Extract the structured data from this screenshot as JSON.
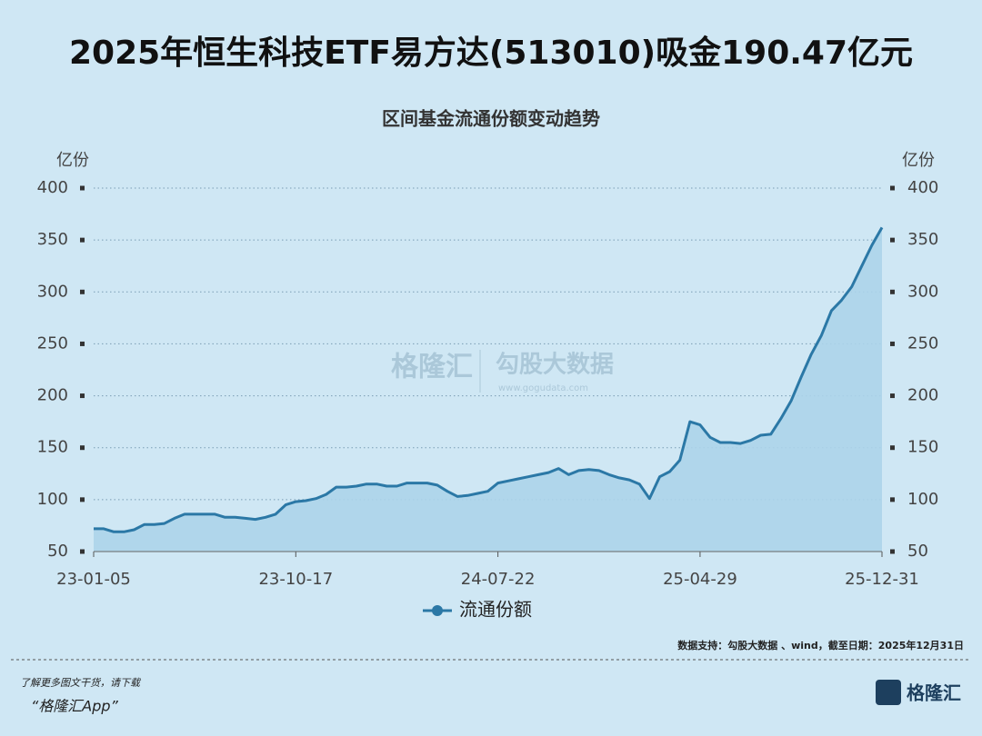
{
  "chart_data": {
    "type": "area",
    "title": "2025年恒生科技ETF易方达(513010)吸金190.47亿元",
    "subtitle": "区间基金流通份额变动趋势",
    "y_label": "亿份",
    "y2_label": "亿份",
    "categories": [
      "23-01-05",
      null,
      null,
      null,
      null,
      null,
      null,
      null,
      null,
      null,
      null,
      null,
      null,
      null,
      null,
      null,
      null,
      null,
      null,
      null,
      "23-10-17",
      null,
      null,
      null,
      null,
      null,
      null,
      null,
      null,
      null,
      null,
      null,
      null,
      null,
      null,
      null,
      null,
      null,
      null,
      null,
      "24-07-22",
      null,
      null,
      null,
      null,
      null,
      null,
      null,
      null,
      null,
      null,
      null,
      null,
      null,
      null,
      null,
      null,
      null,
      null,
      null,
      "25-04-29",
      null,
      null,
      null,
      null,
      null,
      null,
      null,
      null,
      null,
      null,
      null,
      null,
      null,
      null,
      null,
      null,
      null,
      "25-12-31"
    ],
    "series": [
      {
        "name": "流通份额",
        "color": "#2b78a6",
        "fill": "#acd4ea",
        "values": [
          72,
          72,
          69,
          69,
          71,
          76,
          76,
          77,
          82,
          86,
          86,
          86,
          86,
          83,
          83,
          82,
          81,
          83,
          86,
          95,
          98,
          99,
          101,
          105,
          112,
          112,
          113,
          115,
          115,
          113,
          113,
          116,
          116,
          116,
          114,
          108,
          103,
          104,
          106,
          108,
          116,
          118,
          120,
          122,
          124,
          126,
          130,
          124,
          128,
          129,
          128,
          124,
          121,
          119,
          115,
          101,
          122,
          127,
          138,
          175,
          172,
          160,
          155,
          155,
          154,
          157,
          162,
          163,
          178,
          195,
          218,
          240,
          258,
          282,
          292,
          305,
          325,
          345,
          362
        ]
      }
    ],
    "ylim": [
      50,
      400
    ],
    "yticks": [
      50,
      100,
      150,
      200,
      250,
      300,
      350,
      400
    ],
    "y2lim": [
      50,
      400
    ],
    "y2ticks": [
      50,
      100,
      150,
      200,
      250,
      300,
      350,
      400
    ],
    "grid": true,
    "legend": "bottom",
    "source": "数据支持：勾股大数据 、wind，截至日期：2025年12月31日"
  },
  "watermark": {
    "left": "格隆汇",
    "right": "勾股大数据",
    "url": "www.gogudata.com"
  },
  "footer": {
    "line1": "了解更多图文干货，请下载",
    "line2": "“格隆汇App”",
    "logo": "格隆汇"
  }
}
